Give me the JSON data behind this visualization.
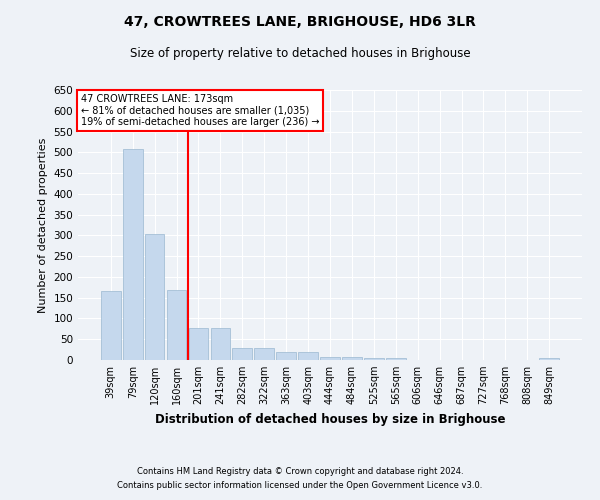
{
  "title": "47, CROWTREES LANE, BRIGHOUSE, HD6 3LR",
  "subtitle": "Size of property relative to detached houses in Brighouse",
  "xlabel": "Distribution of detached houses by size in Brighouse",
  "ylabel": "Number of detached properties",
  "categories": [
    "39sqm",
    "79sqm",
    "120sqm",
    "160sqm",
    "201sqm",
    "241sqm",
    "282sqm",
    "322sqm",
    "363sqm",
    "403sqm",
    "444sqm",
    "484sqm",
    "525sqm",
    "565sqm",
    "606sqm",
    "646sqm",
    "687sqm",
    "727sqm",
    "768sqm",
    "808sqm",
    "849sqm"
  ],
  "values": [
    165,
    508,
    303,
    168,
    76,
    76,
    30,
    30,
    20,
    20,
    8,
    8,
    5,
    5,
    0,
    0,
    0,
    0,
    0,
    0,
    5
  ],
  "bar_color": "#c5d8ed",
  "bar_edge_color": "#9ab8d0",
  "vline_x": 3.5,
  "vline_color": "red",
  "annotation_title": "47 CROWTREES LANE: 173sqm",
  "annotation_line1": "← 81% of detached houses are smaller (1,035)",
  "annotation_line2": "19% of semi-detached houses are larger (236) →",
  "annotation_box_color": "red",
  "ylim": [
    0,
    650
  ],
  "yticks": [
    0,
    50,
    100,
    150,
    200,
    250,
    300,
    350,
    400,
    450,
    500,
    550,
    600,
    650
  ],
  "footer1": "Contains HM Land Registry data © Crown copyright and database right 2024.",
  "footer2": "Contains public sector information licensed under the Open Government Licence v3.0.",
  "bg_color": "#eef2f7",
  "plot_bg_color": "#eef2f7"
}
